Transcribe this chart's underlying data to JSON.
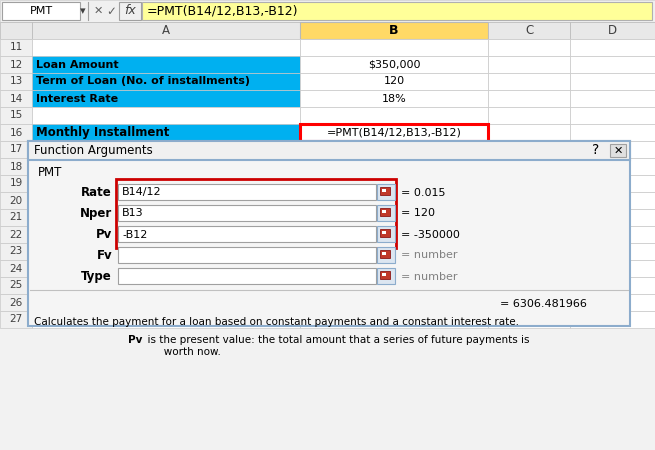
{
  "bg_color": "#f0f0f0",
  "formula_bar_text": "=PMT(B14/12,B13,-B12)",
  "col_B_header_color": "#ffd966",
  "cyan_color": "#00b0f0",
  "dialog_title": "Function Arguments",
  "dialog_subtitle": "PMT",
  "dialog_args": [
    {
      "label": "Rate",
      "value": "B14/12",
      "result": "= 0.015",
      "highlighted": true
    },
    {
      "label": "Nper",
      "value": "B13",
      "result": "= 120",
      "highlighted": true
    },
    {
      "label": "Pv",
      "value": "-B12",
      "result": "= -350000",
      "highlighted": true
    },
    {
      "label": "Fv",
      "value": "",
      "result": "= number",
      "highlighted": false
    },
    {
      "label": "Type",
      "value": "",
      "result": "= number",
      "highlighted": false
    }
  ],
  "dialog_formula_result": "= 6306.481966",
  "dialog_desc1": "Calculates the payment for a loan based on constant payments and a constant interest rate.",
  "dialog_desc2_bold": "Pv",
  "dialog_desc2_rest": "  is the present value: the total amount that a series of future payments is worth now."
}
